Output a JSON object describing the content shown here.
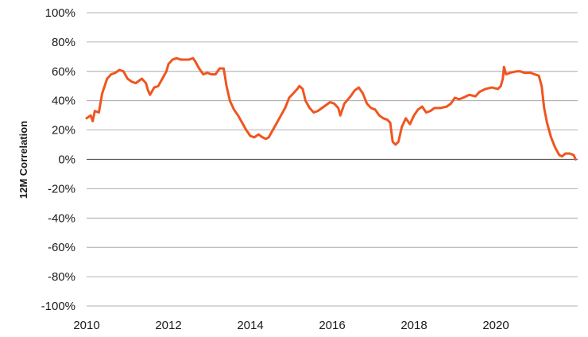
{
  "chart_data": {
    "type": "line",
    "title": "",
    "xlabel": "",
    "ylabel": "12M Correlation",
    "x_ticks": [
      "2010",
      "2012",
      "2014",
      "2016",
      "2018",
      "2020"
    ],
    "y_ticks": [
      "100%",
      "80%",
      "60%",
      "40%",
      "20%",
      "0%",
      "-20%",
      "-40%",
      "-60%",
      "-80%",
      "-100%"
    ],
    "xlim": [
      2010,
      2022
    ],
    "ylim": [
      -100,
      100
    ],
    "grid": "horizontal",
    "colors": {
      "line": "#f0551f",
      "grid": "#9a9a9a",
      "zero_line": "#555555"
    },
    "series": [
      {
        "values": [
          [
            2010.0,
            28
          ],
          [
            2010.1,
            30
          ],
          [
            2010.15,
            26
          ],
          [
            2010.2,
            33
          ],
          [
            2010.3,
            32
          ],
          [
            2010.38,
            45
          ],
          [
            2010.5,
            55
          ],
          [
            2010.6,
            58
          ],
          [
            2010.7,
            59
          ],
          [
            2010.8,
            61
          ],
          [
            2010.9,
            60
          ],
          [
            2011.0,
            55
          ],
          [
            2011.1,
            53
          ],
          [
            2011.2,
            52
          ],
          [
            2011.35,
            55
          ],
          [
            2011.45,
            52
          ],
          [
            2011.5,
            47
          ],
          [
            2011.55,
            44
          ],
          [
            2011.65,
            49
          ],
          [
            2011.75,
            50
          ],
          [
            2011.85,
            55
          ],
          [
            2011.95,
            60
          ],
          [
            2012.0,
            65
          ],
          [
            2012.1,
            68
          ],
          [
            2012.2,
            69
          ],
          [
            2012.3,
            68
          ],
          [
            2012.4,
            68
          ],
          [
            2012.5,
            68
          ],
          [
            2012.6,
            69
          ],
          [
            2012.65,
            67
          ],
          [
            2012.75,
            62
          ],
          [
            2012.85,
            58
          ],
          [
            2012.95,
            59
          ],
          [
            2013.05,
            58
          ],
          [
            2013.15,
            58
          ],
          [
            2013.25,
            62
          ],
          [
            2013.35,
            62
          ],
          [
            2013.42,
            50
          ],
          [
            2013.5,
            40
          ],
          [
            2013.6,
            34
          ],
          [
            2013.7,
            30
          ],
          [
            2013.8,
            25
          ],
          [
            2013.9,
            20
          ],
          [
            2014.0,
            16
          ],
          [
            2014.1,
            15
          ],
          [
            2014.2,
            17
          ],
          [
            2014.3,
            15
          ],
          [
            2014.38,
            14
          ],
          [
            2014.45,
            15
          ],
          [
            2014.55,
            20
          ],
          [
            2014.65,
            25
          ],
          [
            2014.75,
            30
          ],
          [
            2014.85,
            35
          ],
          [
            2014.95,
            42
          ],
          [
            2015.05,
            45
          ],
          [
            2015.15,
            48
          ],
          [
            2015.2,
            50
          ],
          [
            2015.28,
            48
          ],
          [
            2015.35,
            40
          ],
          [
            2015.45,
            35
          ],
          [
            2015.55,
            32
          ],
          [
            2015.65,
            33
          ],
          [
            2015.8,
            36
          ],
          [
            2015.95,
            39
          ],
          [
            2016.05,
            38
          ],
          [
            2016.15,
            35
          ],
          [
            2016.2,
            30
          ],
          [
            2016.3,
            38
          ],
          [
            2016.45,
            43
          ],
          [
            2016.55,
            47
          ],
          [
            2016.65,
            49
          ],
          [
            2016.75,
            45
          ],
          [
            2016.85,
            38
          ],
          [
            2016.95,
            35
          ],
          [
            2017.05,
            34
          ],
          [
            2017.15,
            30
          ],
          [
            2017.25,
            28
          ],
          [
            2017.35,
            27
          ],
          [
            2017.42,
            25
          ],
          [
            2017.48,
            12
          ],
          [
            2017.55,
            10
          ],
          [
            2017.62,
            12
          ],
          [
            2017.7,
            22
          ],
          [
            2017.8,
            28
          ],
          [
            2017.9,
            24
          ],
          [
            2018.0,
            30
          ],
          [
            2018.1,
            34
          ],
          [
            2018.2,
            36
          ],
          [
            2018.3,
            32
          ],
          [
            2018.4,
            33
          ],
          [
            2018.5,
            35
          ],
          [
            2018.65,
            35
          ],
          [
            2018.8,
            36
          ],
          [
            2018.9,
            38
          ],
          [
            2019.0,
            42
          ],
          [
            2019.1,
            41
          ],
          [
            2019.2,
            42
          ],
          [
            2019.35,
            44
          ],
          [
            2019.5,
            43
          ],
          [
            2019.6,
            46
          ],
          [
            2019.75,
            48
          ],
          [
            2019.9,
            49
          ],
          [
            2020.05,
            48
          ],
          [
            2020.12,
            50
          ],
          [
            2020.17,
            55
          ],
          [
            2020.2,
            63
          ],
          [
            2020.25,
            58
          ],
          [
            2020.35,
            59
          ],
          [
            2020.5,
            60
          ],
          [
            2020.6,
            60
          ],
          [
            2020.7,
            59
          ],
          [
            2020.85,
            59
          ],
          [
            2020.95,
            58
          ],
          [
            2021.05,
            57
          ],
          [
            2021.12,
            50
          ],
          [
            2021.18,
            35
          ],
          [
            2021.25,
            25
          ],
          [
            2021.35,
            15
          ],
          [
            2021.45,
            8
          ],
          [
            2021.55,
            3
          ],
          [
            2021.62,
            2
          ],
          [
            2021.7,
            4
          ],
          [
            2021.8,
            4
          ],
          [
            2021.9,
            3
          ],
          [
            2021.95,
            0
          ]
        ]
      }
    ]
  }
}
